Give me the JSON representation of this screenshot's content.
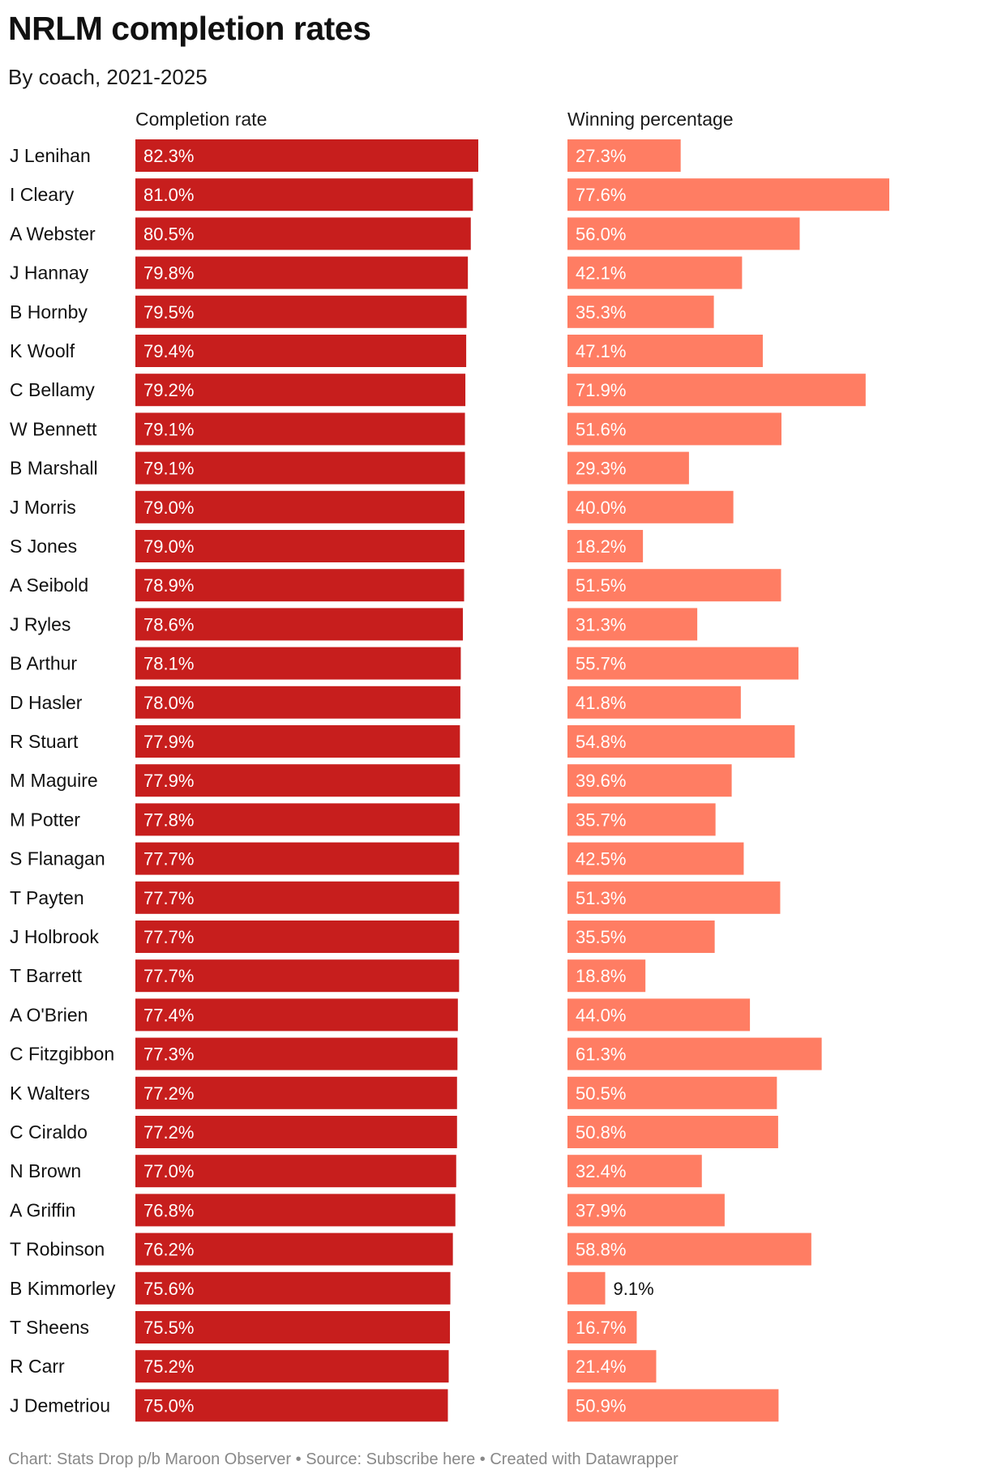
{
  "title": "NRLM completion rates",
  "subtitle": "By coach, 2021-2025",
  "footer": {
    "chart_credit": "Chart: Stats Drop p/b Maroon Observer",
    "separator": "•",
    "source": "Source: Subscribe here",
    "created": "Created with Datawrapper"
  },
  "colors": {
    "completion": "#c71e1d",
    "winning": "#ff7d63",
    "label_on_bar": "#ffffff",
    "label_off_bar": "#111111"
  },
  "chart_data": {
    "type": "bar",
    "title": "NRLM completion rates",
    "subtitle": "By coach, 2021-2025",
    "orientation": "horizontal",
    "categories": [
      "J Lenihan",
      "I Cleary",
      "A Webster",
      "J Hannay",
      "B Hornby",
      "K Woolf",
      "C Bellamy",
      "W Bennett",
      "B Marshall",
      "J Morris",
      "S Jones",
      "A Seibold",
      "J Ryles",
      "B Arthur",
      "D Hasler",
      "R Stuart",
      "M Maguire",
      "M Potter",
      "S Flanagan",
      "T Payten",
      "J Holbrook",
      "T Barrett",
      "A O'Brien",
      "C Fitzgibbon",
      "K Walters",
      "C Ciraldo",
      "N Brown",
      "A Griffin",
      "T Robinson",
      "B Kimmorley",
      "T Sheens",
      "R Carr",
      "J Demetriou"
    ],
    "series": [
      {
        "name": "Completion rate",
        "values": [
          82.3,
          81.0,
          80.5,
          79.8,
          79.5,
          79.4,
          79.2,
          79.1,
          79.1,
          79.0,
          79.0,
          78.9,
          78.6,
          78.1,
          78.0,
          77.9,
          77.9,
          77.8,
          77.7,
          77.7,
          77.7,
          77.7,
          77.4,
          77.3,
          77.2,
          77.2,
          77.0,
          76.8,
          76.2,
          75.6,
          75.5,
          75.2,
          75.0
        ],
        "labels": [
          "82.3%",
          "81.0%",
          "80.5%",
          "79.8%",
          "79.5%",
          "79.4%",
          "79.2%",
          "79.1%",
          "79.1%",
          "79.0%",
          "79.0%",
          "78.9%",
          "78.6%",
          "78.1%",
          "78.0%",
          "77.9%",
          "77.9%",
          "77.8%",
          "77.7%",
          "77.7%",
          "77.7%",
          "77.7%",
          "77.4%",
          "77.3%",
          "77.2%",
          "77.2%",
          "77.0%",
          "76.8%",
          "76.2%",
          "75.6%",
          "75.5%",
          "75.2%",
          "75.0%"
        ],
        "range": [
          0,
          82.3
        ]
      },
      {
        "name": "Winning percentage",
        "values": [
          27.3,
          77.6,
          56.0,
          42.1,
          35.3,
          47.1,
          71.9,
          51.6,
          29.3,
          40.0,
          18.2,
          51.5,
          31.3,
          55.7,
          41.8,
          54.8,
          39.6,
          35.7,
          42.5,
          51.3,
          35.5,
          18.8,
          44.0,
          61.3,
          50.5,
          50.8,
          32.4,
          37.9,
          58.8,
          9.1,
          16.7,
          21.4,
          50.9
        ],
        "labels": [
          "27.3%",
          "77.6%",
          "56.0%",
          "42.1%",
          "35.3%",
          "47.1%",
          "71.9%",
          "51.6%",
          "29.3%",
          "40.0%",
          "18.2%",
          "51.5%",
          "31.3%",
          "55.7%",
          "41.8%",
          "54.8%",
          "39.6%",
          "35.7%",
          "42.5%",
          "51.3%",
          "35.5%",
          "18.8%",
          "44.0%",
          "61.3%",
          "50.5%",
          "50.8%",
          "32.4%",
          "37.9%",
          "58.8%",
          "9.1%",
          "16.7%",
          "21.4%",
          "50.9%"
        ],
        "range": [
          0,
          77.6
        ]
      }
    ],
    "xlabel": "",
    "ylabel": "",
    "grid": false,
    "legend": "none"
  }
}
